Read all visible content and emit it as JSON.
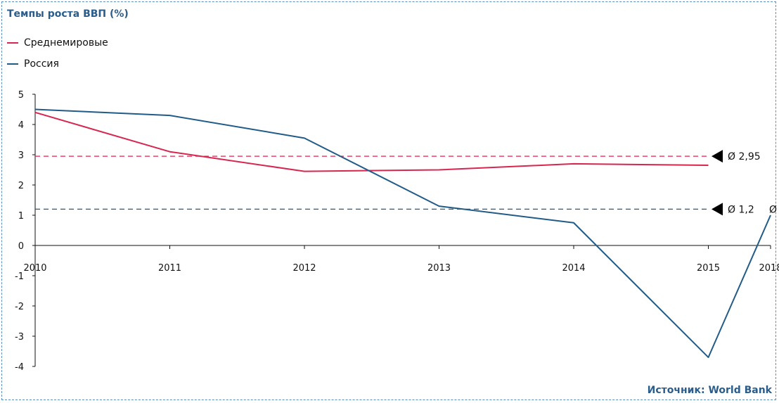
{
  "header": {
    "title": "Темпы роста ВВП (%)"
  },
  "footer": {
    "source": "Источник: World Bank"
  },
  "colors": {
    "world": "#d7264f",
    "russia": "#215b87",
    "frame": "#5b8fbf",
    "title": "#2a5d8c"
  },
  "chart_data": {
    "type": "line",
    "title": "Темпы роста ВВП (%)",
    "x": [
      "2010",
      "2011",
      "2012",
      "2013",
      "2014",
      "2015",
      "2018"
    ],
    "ylim": [
      -4,
      5
    ],
    "yticks": [
      "5",
      "4",
      "3",
      "2",
      "1",
      "0",
      "-1",
      "-2",
      "-3",
      "-4"
    ],
    "legend_position": "top-left",
    "series": [
      {
        "name": "Среднемировые",
        "color": "#d7264f",
        "values": [
          4.4,
          3.1,
          2.45,
          2.5,
          2.7,
          2.65,
          null
        ]
      },
      {
        "name": "Россия",
        "color": "#215b87",
        "values": [
          4.5,
          4.3,
          3.55,
          1.3,
          0.75,
          -3.7,
          1.0
        ]
      }
    ],
    "averages": [
      {
        "series": "Среднемировые",
        "value": 2.95,
        "label": "Ø 2,95",
        "color": "#d7264f"
      },
      {
        "series": "Россия",
        "value": 1.2,
        "label": "Ø 1,2",
        "color": "#215b87"
      }
    ],
    "extra_label": "Ø"
  }
}
